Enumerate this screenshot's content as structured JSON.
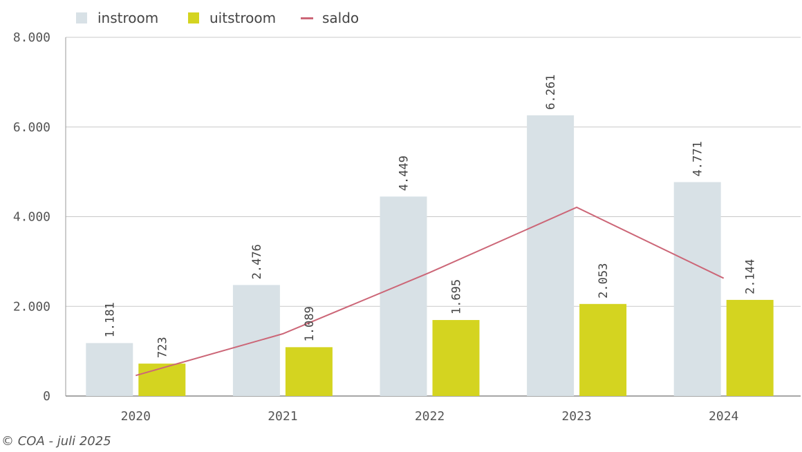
{
  "chart_data": {
    "type": "bar",
    "categories": [
      "2020",
      "2021",
      "2022",
      "2023",
      "2024"
    ],
    "series": [
      {
        "name": "instroom",
        "type": "bar",
        "values": [
          1181,
          2476,
          4449,
          6261,
          4771
        ],
        "color": "#d8e1e6"
      },
      {
        "name": "uitstroom",
        "type": "bar",
        "values": [
          723,
          1089,
          1695,
          2053,
          2144
        ],
        "color": "#d4d420"
      },
      {
        "name": "saldo",
        "type": "line",
        "values": [
          458,
          1387,
          2754,
          4208,
          2627
        ],
        "color": "#cc6677"
      }
    ],
    "data_labels": {
      "instroom": [
        "1.181",
        "2.476",
        "4.449",
        "6.261",
        "4.771"
      ],
      "uitstroom": [
        "723",
        "1.089",
        "1.695",
        "2.053",
        "2.144"
      ]
    },
    "ylim": [
      0,
      8000
    ],
    "yticks": [
      0,
      2000,
      4000,
      6000,
      8000
    ],
    "ytick_labels": [
      "0",
      "2.000",
      "4.000",
      "6.000",
      "8.000"
    ],
    "grid": true,
    "legend_position": "top-left"
  },
  "credit": "© COA - juli 2025"
}
